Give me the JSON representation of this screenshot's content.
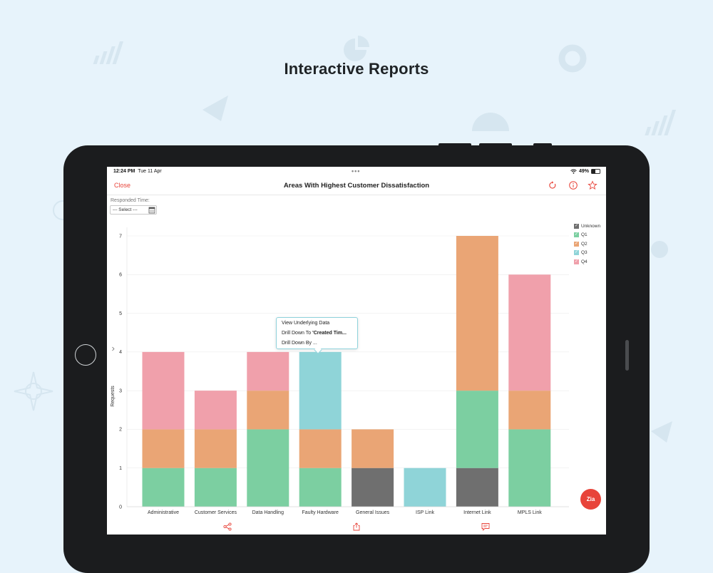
{
  "headline": "Interactive Reports",
  "status_bar": {
    "time": "12:24 PM",
    "date": "Tue 11 Apr",
    "battery": "49%",
    "battery_level": 0.49
  },
  "nav": {
    "close_label": "Close",
    "title": "Areas With Highest Customer Dissatisfaction",
    "icons": [
      "refresh-icon",
      "info-icon",
      "star-icon"
    ]
  },
  "filter": {
    "label": "Responded Time:",
    "value": "--- Select ---",
    "icon": "calendar-icon"
  },
  "context_menu": {
    "items": [
      {
        "label": "View Underlying Data",
        "prefix": "",
        "bold": ""
      },
      {
        "label": "Drill Down To ",
        "prefix": "Drill Down To ",
        "bold": "'Created Tim..."
      },
      {
        "label": "Drill Down By ...",
        "prefix": "",
        "bold": ""
      }
    ]
  },
  "fab": {
    "label": "Zia"
  },
  "bottom_toolbar": {
    "icons": [
      "share-icon",
      "export-icon",
      "comment-icon"
    ]
  },
  "colors": {
    "accent": "#e8443a",
    "unknown": "#6f6f6f",
    "q1": "#7ccfa1",
    "q2": "#eaa575",
    "q3": "#8fd4d8",
    "q4": "#f0a0ab"
  },
  "chart_data": {
    "type": "bar",
    "stacked": true,
    "ylabel": "Requests",
    "xlabel": "",
    "ylim": [
      0,
      7
    ],
    "yticks": [
      0,
      1,
      2,
      3,
      4,
      5,
      6,
      7
    ],
    "grid": true,
    "legend_position": "top-right",
    "categories": [
      "Administrative",
      "Customer Services",
      "Data Handling",
      "Faulty Hardware",
      "General Issues",
      "ISP Link",
      "Internet Link",
      "MPLS Link"
    ],
    "series": [
      {
        "name": "Unknown",
        "color": "#6f6f6f",
        "values": [
          0,
          0,
          0,
          0,
          1,
          0,
          1,
          0
        ]
      },
      {
        "name": "Q1",
        "color": "#7ccfa1",
        "values": [
          1,
          1,
          2,
          1,
          0,
          0,
          2,
          2
        ]
      },
      {
        "name": "Q2",
        "color": "#eaa575",
        "values": [
          1,
          1,
          1,
          1,
          1,
          0,
          4,
          1
        ]
      },
      {
        "name": "Q3",
        "color": "#8fd4d8",
        "values": [
          0,
          0,
          0,
          2,
          0,
          1,
          0,
          0
        ]
      },
      {
        "name": "Q4",
        "color": "#f0a0ab",
        "values": [
          2,
          1,
          1,
          0,
          0,
          0,
          0,
          3
        ]
      }
    ]
  }
}
